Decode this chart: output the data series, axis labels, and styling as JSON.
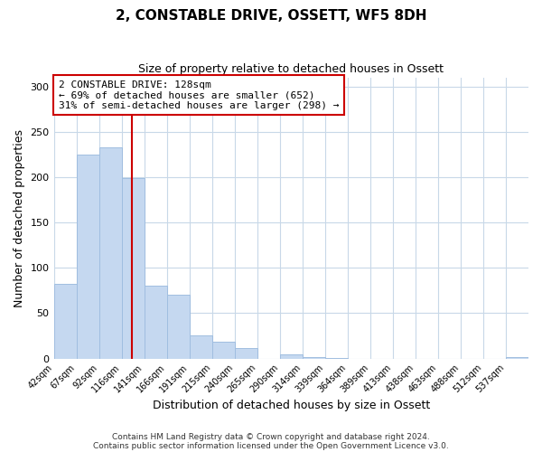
{
  "title": "2, CONSTABLE DRIVE, OSSETT, WF5 8DH",
  "subtitle": "Size of property relative to detached houses in Ossett",
  "xlabel": "Distribution of detached houses by size in Ossett",
  "ylabel": "Number of detached properties",
  "footer_lines": [
    "Contains HM Land Registry data © Crown copyright and database right 2024.",
    "Contains public sector information licensed under the Open Government Licence v3.0."
  ],
  "bin_labels": [
    "42sqm",
    "67sqm",
    "92sqm",
    "116sqm",
    "141sqm",
    "166sqm",
    "191sqm",
    "215sqm",
    "240sqm",
    "265sqm",
    "290sqm",
    "314sqm",
    "339sqm",
    "364sqm",
    "389sqm",
    "413sqm",
    "438sqm",
    "463sqm",
    "488sqm",
    "512sqm",
    "537sqm"
  ],
  "bar_values": [
    82,
    225,
    233,
    199,
    80,
    70,
    26,
    19,
    12,
    0,
    5,
    2,
    1,
    0,
    0,
    0,
    0,
    0,
    0,
    0,
    2
  ],
  "bar_color": "#c5d8f0",
  "bar_edgecolor": "#a0bee0",
  "vline_x_bin_index": 3.44,
  "vline_color": "#cc0000",
  "annotation_title": "2 CONSTABLE DRIVE: 128sqm",
  "annotation_line2": "← 69% of detached houses are smaller (652)",
  "annotation_line3": "31% of semi-detached houses are larger (298) →",
  "annotation_box_edgecolor": "#cc0000",
  "ylim": [
    0,
    310
  ],
  "yticks": [
    0,
    50,
    100,
    150,
    200,
    250,
    300
  ],
  "figsize": [
    6.0,
    5.0
  ],
  "dpi": 100
}
